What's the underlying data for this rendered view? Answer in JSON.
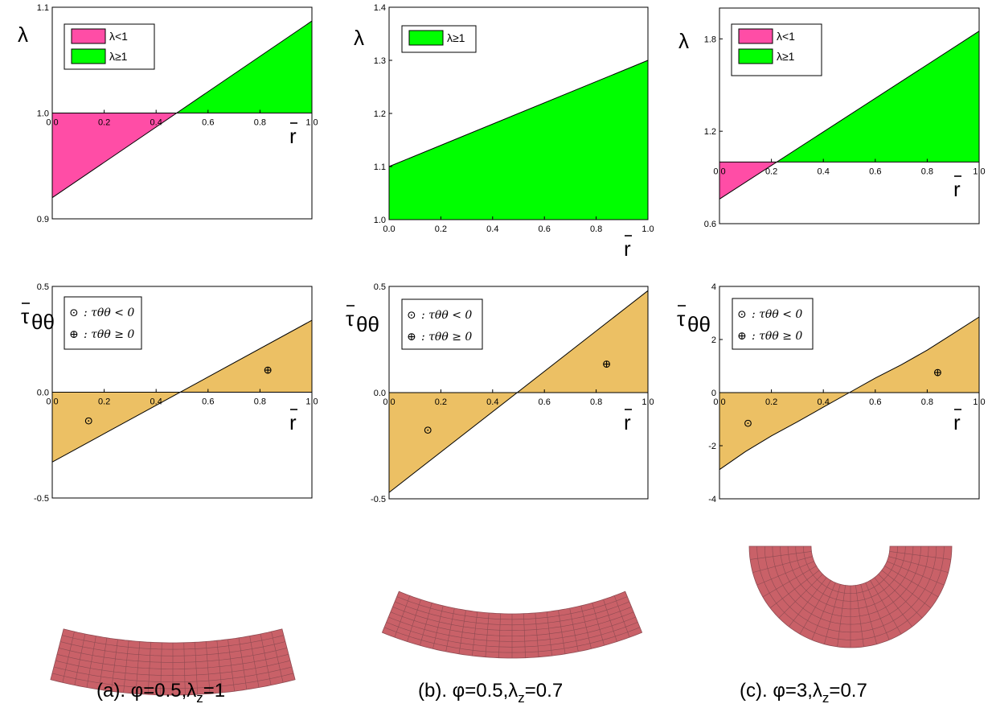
{
  "chart_data": [
    {
      "id": "a1",
      "type": "area",
      "ylabel": "λ",
      "xlabel": "r",
      "xlim": [
        0,
        1
      ],
      "ylim": [
        0.9,
        1.1
      ],
      "xticks": [
        "0.0",
        "0.2",
        "0.4",
        "0.6",
        "0.8",
        "1.0"
      ],
      "yticks": [
        {
          "v": 0.9,
          "t": "0.9"
        },
        {
          "v": 1.0,
          "t": "1.0"
        },
        {
          "v": 1.1,
          "t": "1.1"
        }
      ],
      "line": {
        "x": [
          0,
          1
        ],
        "y": [
          0.92,
          1.087
        ]
      },
      "baseline": 1.0,
      "legend": [
        {
          "label": "λ<1",
          "color": "#ff4da6"
        },
        {
          "label": "λ≥1",
          "color": "#00ff00"
        }
      ],
      "grid": false
    },
    {
      "id": "b1",
      "type": "area",
      "ylabel": "λ",
      "xlabel": "r",
      "xlim": [
        0,
        1
      ],
      "ylim": [
        1.0,
        1.4
      ],
      "xticks": [
        "0.0",
        "0.2",
        "0.4",
        "0.6",
        "0.8",
        "1.0"
      ],
      "yticks": [
        {
          "v": 1.0,
          "t": "1.0"
        },
        {
          "v": 1.1,
          "t": "1.1"
        },
        {
          "v": 1.2,
          "t": "1.2"
        },
        {
          "v": 1.3,
          "t": "1.3"
        },
        {
          "v": 1.4,
          "t": "1.4"
        }
      ],
      "line": {
        "x": [
          0,
          1
        ],
        "y": [
          1.1,
          1.3
        ]
      },
      "baseline": 1.0,
      "legend": [
        {
          "label": "λ≥1",
          "color": "#00ff00"
        }
      ],
      "grid": false
    },
    {
      "id": "c1",
      "type": "area",
      "ylabel": "λ",
      "xlabel": "r",
      "xlim": [
        0,
        1
      ],
      "ylim": [
        0.6,
        2.0
      ],
      "xticks": [
        "0.0",
        "0.2",
        "0.4",
        "0.6",
        "0.8",
        "1.0"
      ],
      "yticks": [
        {
          "v": 0.6,
          "t": "0.6"
        },
        {
          "v": 1.2,
          "t": "1.2"
        },
        {
          "v": 1.8,
          "t": "1.8"
        }
      ],
      "line": {
        "x": [
          0,
          1
        ],
        "y": [
          0.76,
          1.85
        ]
      },
      "baseline": 1.0,
      "legend": [
        {
          "label": "λ<1",
          "color": "#ff4da6"
        },
        {
          "label": "λ≥1",
          "color": "#00ff00"
        }
      ],
      "grid": false
    },
    {
      "id": "a2",
      "type": "area",
      "ylabel": "τθθ",
      "xlabel": "r",
      "xlim": [
        0,
        1
      ],
      "ylim": [
        -0.5,
        0.5
      ],
      "xticks": [
        "0.0",
        "0.2",
        "0.4",
        "0.6",
        "0.8",
        "1.0"
      ],
      "yticks": [
        {
          "v": -0.5,
          "t": "-0.5"
        },
        {
          "v": 0.0,
          "t": "0.0"
        },
        {
          "v": 0.5,
          "t": "0.5"
        }
      ],
      "line": {
        "x": [
          0,
          1
        ],
        "y": [
          -0.33,
          0.34
        ]
      },
      "baseline": 0.0,
      "legend_text": [
        ": τθθ < 0",
        ": τθθ ≥ 0"
      ],
      "markers": [
        {
          "x": 0.14,
          "y": -0.13,
          "symbol": "⊙"
        },
        {
          "x": 0.83,
          "y": 0.11,
          "symbol": "⊕"
        }
      ],
      "grid": false
    },
    {
      "id": "b2",
      "type": "area",
      "ylabel": "τθθ",
      "xlabel": "r",
      "xlim": [
        0,
        1
      ],
      "ylim": [
        -0.5,
        0.5
      ],
      "xticks": [
        "0.0",
        "0.2",
        "0.4",
        "0.6",
        "0.8",
        "1.0"
      ],
      "yticks": [
        {
          "v": -0.5,
          "t": "-0.5"
        },
        {
          "v": 0.0,
          "t": "0.0"
        },
        {
          "v": 0.5,
          "t": "0.5"
        }
      ],
      "line": {
        "x": [
          0,
          1
        ],
        "y": [
          -0.47,
          0.48
        ]
      },
      "baseline": 0.0,
      "legend_text": [
        ": τθθ < 0",
        ": τθθ ≥ 0"
      ],
      "markers": [
        {
          "x": 0.15,
          "y": -0.17,
          "symbol": "⊙"
        },
        {
          "x": 0.84,
          "y": 0.14,
          "symbol": "⊕"
        }
      ],
      "grid": false
    },
    {
      "id": "c2",
      "type": "area",
      "ylabel": "τθθ",
      "xlabel": "r",
      "xlim": [
        0,
        1
      ],
      "ylim": [
        -4,
        4
      ],
      "xticks": [
        "0.0",
        "0.2",
        "0.4",
        "0.6",
        "0.8",
        "1.0"
      ],
      "yticks": [
        {
          "v": -4,
          "t": "-4"
        },
        {
          "v": -2,
          "t": "-2"
        },
        {
          "v": 0,
          "t": "0"
        },
        {
          "v": 2,
          "t": "2"
        },
        {
          "v": 4,
          "t": "4"
        }
      ],
      "line": {
        "x": [
          0,
          0.1,
          0.2,
          0.3,
          0.4,
          0.5,
          0.6,
          0.7,
          0.8,
          0.9,
          1.0
        ],
        "y": [
          -2.9,
          -2.22,
          -1.63,
          -1.1,
          -0.55,
          0.0,
          0.55,
          1.05,
          1.6,
          2.22,
          2.85
        ]
      },
      "baseline": 0.0,
      "legend_text": [
        ": τθθ < 0",
        ": τθθ ≥ 0"
      ],
      "markers": [
        {
          "x": 0.11,
          "y": -1.1,
          "symbol": "⊙"
        },
        {
          "x": 0.84,
          "y": 0.8,
          "symbol": "⊕"
        }
      ],
      "grid": false
    }
  ],
  "colors": {
    "pink": "#ff4da6",
    "green": "#00ff00",
    "orange": "#ecc064",
    "shell": "#c96168",
    "shell_line": "#8f4b52"
  },
  "captions": {
    "a": {
      "prefix": "(a). φ=0.5,λ",
      "sub": "z",
      "suffix": "=1"
    },
    "b": {
      "prefix": "(b). φ=0.5,λ",
      "sub": "z",
      "suffix": "=0.7"
    },
    "c": {
      "prefix": "(c). φ=3,λ",
      "sub": "z",
      "suffix": "=0.7"
    }
  }
}
